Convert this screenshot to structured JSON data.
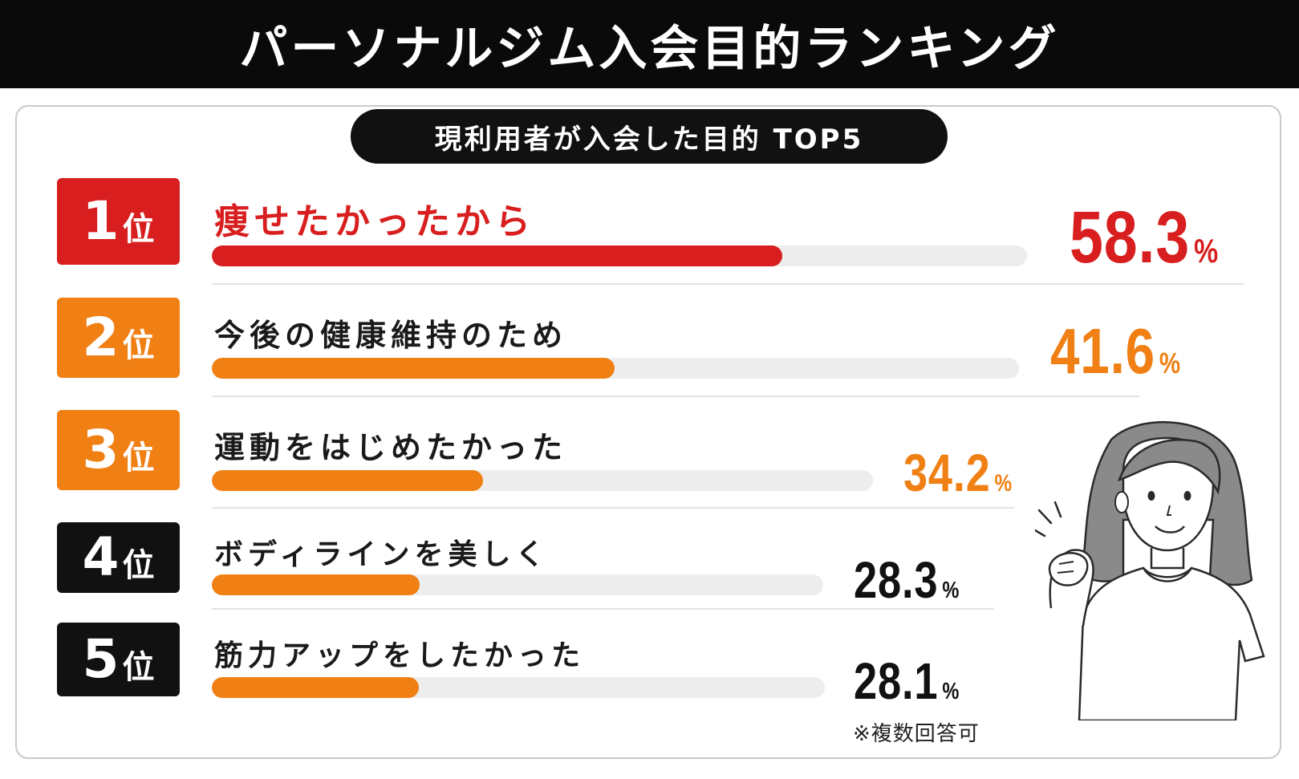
{
  "title": "パーソナルジム入会目的ランキング",
  "subtitle": "現利用者が入会した目的 TOP5",
  "rank_suffix": "位",
  "unit": "%",
  "note": "※複数回答可",
  "colors": {
    "red": "#d81e1e",
    "orange": "#f07f14",
    "black": "#111111",
    "track": "#ededed"
  },
  "chart_data": {
    "type": "bar",
    "title": "現利用者が入会した目的 TOP5",
    "categories": [
      "痩せたかったから",
      "今後の健康維持のため",
      "運動をはじめたかった",
      "ボディラインを美しく",
      "筋力アップをしたかった"
    ],
    "values": [
      58.3,
      41.6,
      34.2,
      28.3,
      28.1
    ],
    "unit": "%",
    "xlim": [
      0,
      100
    ]
  },
  "items": [
    {
      "rank": "1",
      "label": "痩せたかったから",
      "value_text": "58.3"
    },
    {
      "rank": "2",
      "label": "今後の健康維持のため",
      "value_text": "41.6"
    },
    {
      "rank": "3",
      "label": "運動をはじめたかった",
      "value_text": "34.2"
    },
    {
      "rank": "4",
      "label": "ボディラインを美しく",
      "value_text": "28.3"
    },
    {
      "rank": "5",
      "label": "筋力アップをしたかった",
      "value_text": "28.1"
    }
  ]
}
